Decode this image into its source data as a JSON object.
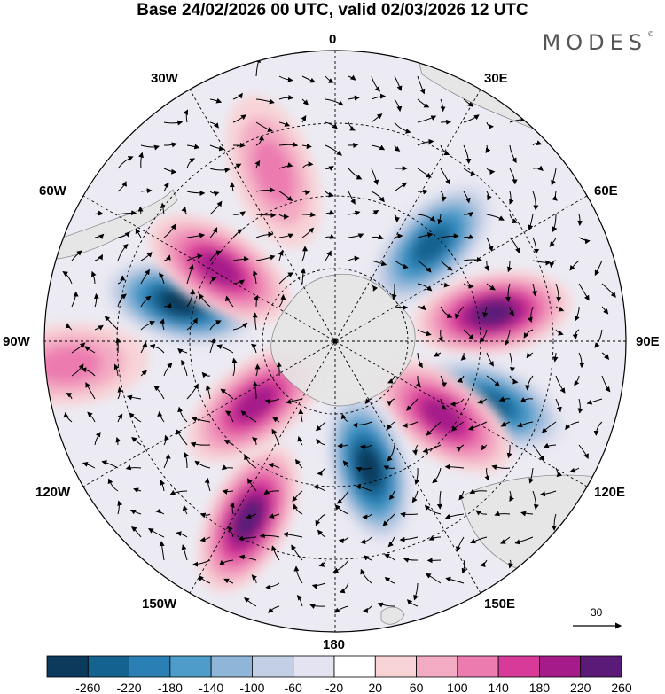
{
  "title": "Base 24/02/2026 00 UTC, valid 02/03/2026 12 UTC",
  "brand": "MODES",
  "brand_mark": "©",
  "longitude_labels": {
    "lon_0": "0",
    "lon_30e": "30E",
    "lon_60e": "60E",
    "lon_90e": "90E",
    "lon_120e": "120E",
    "lon_150e": "150E",
    "lon_180": "180",
    "lon_150w": "150W",
    "lon_120w": "120W",
    "lon_90w": "90W",
    "lon_60w": "60W",
    "lon_30w": "30W"
  },
  "reference_vector": "30",
  "colorbar": {
    "levels": [
      "-260",
      "-220",
      "-180",
      "-140",
      "-100",
      "-60",
      "-20",
      "20",
      "60",
      "100",
      "140",
      "180",
      "220",
      "260"
    ],
    "colors": [
      "#0b3a5c",
      "#14628f",
      "#2a80b5",
      "#4e9cc9",
      "#8fb6d9",
      "#c3cfe4",
      "#e3e3f1",
      "#ffffff",
      "#f8d3d6",
      "#f3aac3",
      "#ec7cb0",
      "#d83a99",
      "#a51b8a",
      "#5c1a78"
    ]
  },
  "anomaly_centers": [
    {
      "sign": "neg",
      "lon": 45,
      "colat": 0.47,
      "level": 5
    },
    {
      "sign": "pos",
      "lon": 80,
      "colat": 0.55,
      "level": 5
    },
    {
      "sign": "neg",
      "lon": 112,
      "colat": 0.58,
      "level": 5
    },
    {
      "sign": "pos",
      "lon": 125,
      "colat": 0.45,
      "level": 4
    },
    {
      "sign": "neg",
      "lon": 165,
      "colat": 0.45,
      "level": 6
    },
    {
      "sign": "pos",
      "lon": 206,
      "colat": 0.68,
      "level": 5
    },
    {
      "sign": "pos",
      "lon": 232,
      "colat": 0.35,
      "level": 4
    },
    {
      "sign": "neg",
      "lon": 284,
      "colat": 0.55,
      "level": 6
    },
    {
      "sign": "pos",
      "lon": 302,
      "colat": 0.47,
      "level": 4
    },
    {
      "sign": "pos",
      "lon": 340,
      "colat": 0.62,
      "level": 2
    },
    {
      "sign": "pos",
      "lon": 265,
      "colat": 0.92,
      "level": 2
    }
  ]
}
